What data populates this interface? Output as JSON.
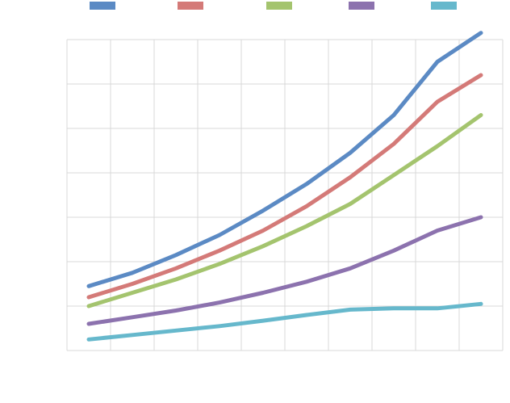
{
  "chart_data": {
    "type": "line",
    "x": [
      1,
      2,
      3,
      4,
      5,
      6,
      7,
      8,
      9,
      10
    ],
    "ylim": [
      0,
      7
    ],
    "grid": true,
    "legend_placement": "top",
    "series": [
      {
        "color": "#5B8AC4",
        "values": [
          1.45,
          1.75,
          2.15,
          2.6,
          3.15,
          3.75,
          4.45,
          5.3,
          6.5,
          7.15
        ]
      },
      {
        "color": "#D47A78",
        "values": [
          1.2,
          1.5,
          1.85,
          2.25,
          2.7,
          3.25,
          3.9,
          4.65,
          5.6,
          6.2
        ]
      },
      {
        "color": "#A4C46E",
        "values": [
          1.0,
          1.3,
          1.6,
          1.95,
          2.35,
          2.8,
          3.3,
          3.95,
          4.6,
          5.3
        ]
      },
      {
        "color": "#8C72AE",
        "values": [
          0.6,
          0.75,
          0.9,
          1.08,
          1.3,
          1.55,
          1.85,
          2.25,
          2.7,
          3.0
        ]
      },
      {
        "color": "#66B8CC",
        "values": [
          0.25,
          0.35,
          0.45,
          0.55,
          0.67,
          0.8,
          0.92,
          0.95,
          0.95,
          1.05
        ]
      }
    ]
  }
}
